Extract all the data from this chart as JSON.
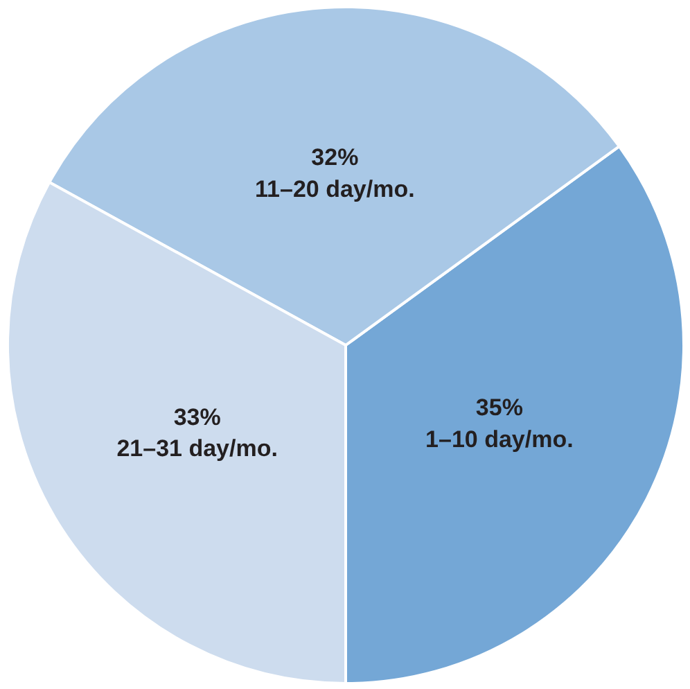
{
  "chart_data": {
    "type": "pie",
    "categories": [
      "1–10 day/mo.",
      "11–20 day/mo.",
      "21–31 day/mo."
    ],
    "values": [
      35,
      32,
      33
    ],
    "colors": [
      "#74a7d6",
      "#a9c8e6",
      "#cddcee"
    ],
    "value_labels": [
      "35%",
      "32%",
      "33%"
    ]
  }
}
